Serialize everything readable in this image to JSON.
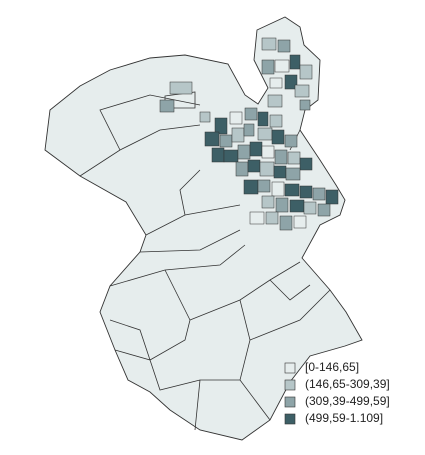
{
  "legend": {
    "items": [
      {
        "label": "[0-146,65]",
        "color": "#e6eded"
      },
      {
        "label": "(146,65-309,39]",
        "color": "#b6c6c8"
      },
      {
        "label": "(309,39-499,59]",
        "color": "#8ea4a8"
      },
      {
        "label": "(499,59-1.109]",
        "color": "#3d5f66"
      }
    ]
  }
}
